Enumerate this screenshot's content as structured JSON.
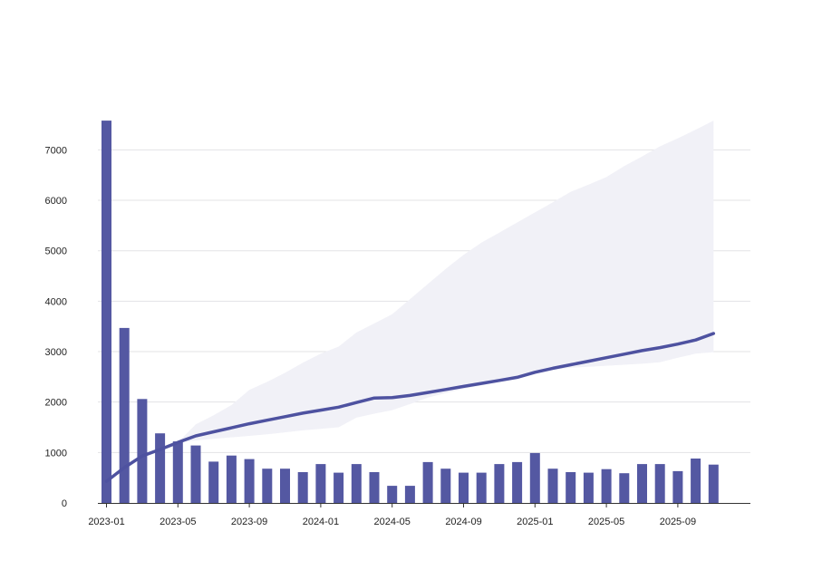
{
  "chart_data": {
    "type": "bar",
    "title": "",
    "xlabel": "",
    "ylabel": "",
    "ylim": [
      0,
      7600
    ],
    "grid": true,
    "legend": "none",
    "y_ticks": [
      0,
      1000,
      2000,
      3000,
      4000,
      5000,
      6000,
      7000
    ],
    "y_tick_labels": [
      "0",
      "1000",
      "2000",
      "3000",
      "4000",
      "5000",
      "6000",
      "7000"
    ],
    "x_tick_labels": [
      "2023-01",
      "2023-05",
      "2023-09",
      "2024-01",
      "2024-05",
      "2024-09",
      "2025-01",
      "2025-05",
      "2025-09"
    ],
    "x_tick_indices": [
      0,
      4,
      8,
      12,
      16,
      20,
      24,
      28,
      32
    ],
    "categories": [
      "2023-01",
      "2023-02",
      "2023-03",
      "2023-04",
      "2023-05",
      "2023-06",
      "2023-07",
      "2023-08",
      "2023-09",
      "2023-10",
      "2023-11",
      "2023-12",
      "2024-01",
      "2024-02",
      "2024-03",
      "2024-04",
      "2024-05",
      "2024-06",
      "2024-07",
      "2024-08",
      "2024-09",
      "2024-10",
      "2024-11",
      "2024-12",
      "2025-01",
      "2025-02",
      "2025-03",
      "2025-04",
      "2025-05",
      "2025-06",
      "2025-07",
      "2025-08",
      "2025-09",
      "2025-10",
      "2025-11"
    ],
    "series": [
      {
        "type": "bar",
        "values": [
          7580,
          3470,
          2060,
          1380,
          1220,
          1140,
          820,
          940,
          870,
          680,
          680,
          610,
          770,
          600,
          770,
          610,
          340,
          340,
          810,
          680,
          600,
          600,
          770,
          810,
          990,
          680,
          610,
          600,
          670,
          590,
          770,
          770,
          630,
          880,
          760
        ]
      },
      {
        "type": "line",
        "values": [
          430,
          700,
          930,
          1060,
          1200,
          1330,
          1410,
          1490,
          1570,
          1640,
          1710,
          1780,
          1840,
          1900,
          1990,
          2080,
          2090,
          2130,
          2190,
          2250,
          2310,
          2370,
          2430,
          2490,
          2590,
          2670,
          2740,
          2810,
          2880,
          2950,
          3020,
          3080,
          3150,
          3230,
          3360
        ]
      },
      {
        "type": "area",
        "lower": [
          430,
          700,
          930,
          1060,
          1200,
          1240,
          1270,
          1300,
          1330,
          1360,
          1400,
          1440,
          1470,
          1500,
          1690,
          1770,
          1840,
          1960,
          2090,
          2180,
          2260,
          2330,
          2400,
          2460,
          2560,
          2640,
          2680,
          2700,
          2720,
          2740,
          2760,
          2790,
          2880,
          2960,
          2990
        ],
        "upper": [
          430,
          700,
          930,
          1060,
          1200,
          1560,
          1740,
          1940,
          2240,
          2400,
          2580,
          2780,
          2960,
          3100,
          3380,
          3560,
          3740,
          4040,
          4340,
          4640,
          4920,
          5160,
          5360,
          5560,
          5760,
          5960,
          6170,
          6310,
          6460,
          6680,
          6870,
          7070,
          7230,
          7400,
          7580
        ]
      }
    ],
    "colors": {
      "bar": "#5458a2",
      "line": "#4e52a0",
      "band": "#f1f1f7"
    }
  }
}
